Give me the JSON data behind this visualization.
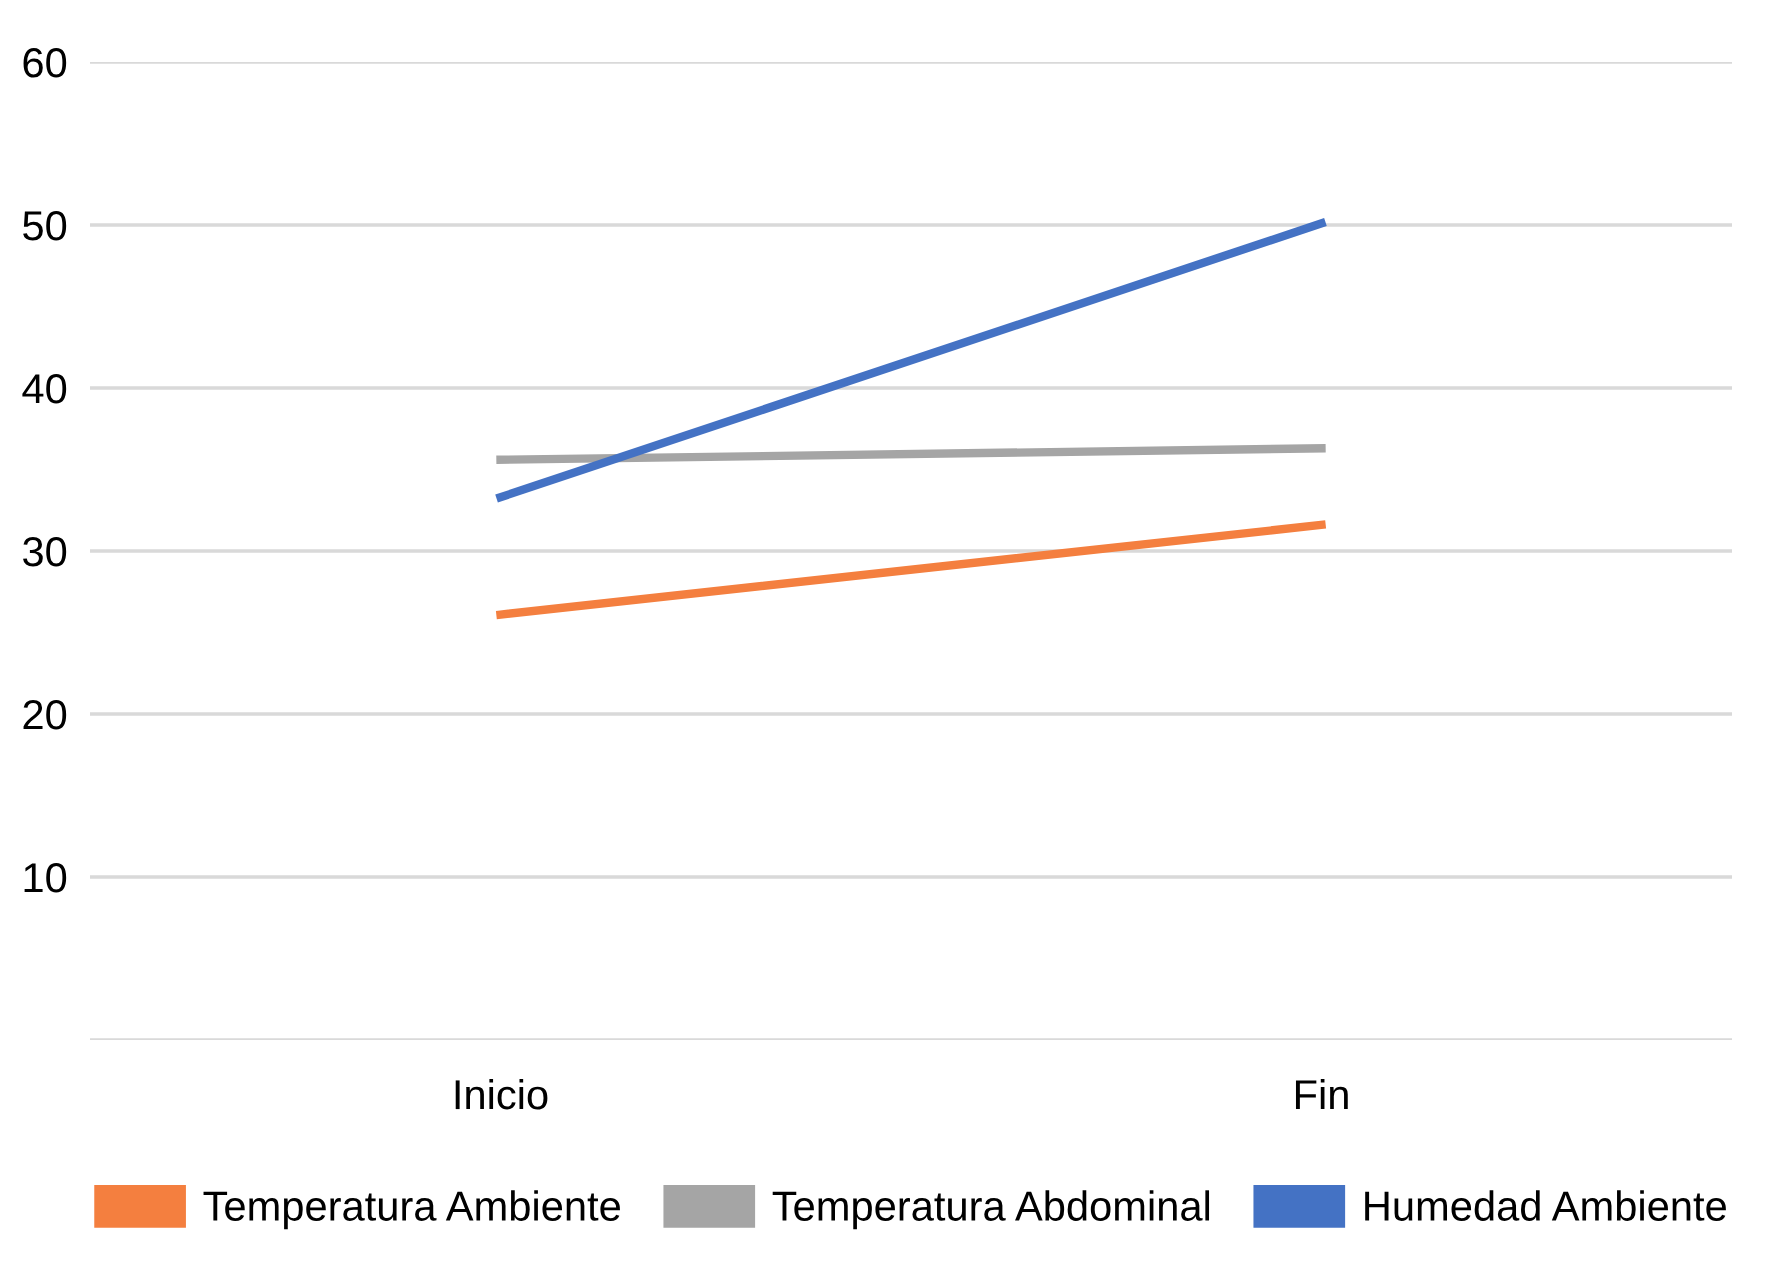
{
  "chart_data": {
    "type": "line",
    "categories": [
      "Inicio",
      "Fin"
    ],
    "series": [
      {
        "name": "Temperatura Ambiente",
        "color": "#f47f3f",
        "values": [
          26.1,
          31.6
        ]
      },
      {
        "name": "Temperatura Abdominal",
        "color": "#a5a5a5",
        "values": [
          35.6,
          36.3
        ]
      },
      {
        "name": "Humedad Ambiente",
        "color": "#4472c4",
        "values": [
          33.3,
          50.1
        ]
      }
    ],
    "ylim": [
      0,
      60
    ],
    "yticks": [
      {
        "value": 0,
        "label": null
      },
      10,
      20,
      30,
      40,
      50,
      60
    ],
    "grid": "y",
    "legend": "bottom",
    "marker": "none",
    "line_style": "solid"
  }
}
